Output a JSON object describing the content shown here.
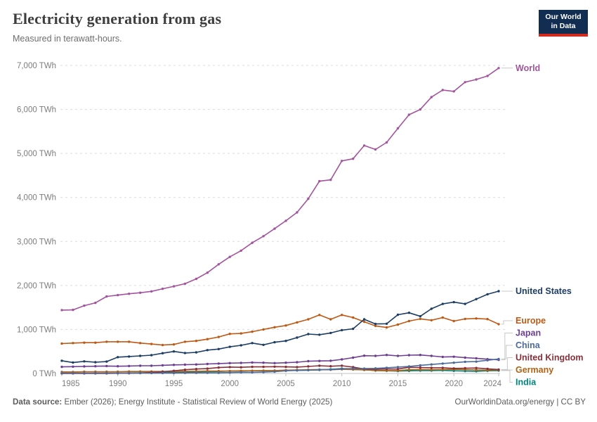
{
  "header": {
    "logo_line1": "Our World",
    "logo_line2": "in Data"
  },
  "footer": {
    "source_label": "Data source:",
    "source_text": "Ember (2026); Energy Institute - Statistical Review of World Energy (2025)",
    "right_text": "OurWorldinData.org/energy | CC BY"
  },
  "chart_data": {
    "type": "line",
    "title": "Electricity generation from gas",
    "subtitle": "Measured in terawatt-hours.",
    "unit": "TWh",
    "xlim": [
      1985,
      2024
    ],
    "ylim": [
      0,
      7000
    ],
    "grid": "horizontal-dashed",
    "legend_position": "right-of-line",
    "yticks": [
      0,
      1000,
      2000,
      3000,
      4000,
      5000,
      6000,
      7000
    ],
    "ytick_suffix": " TWh",
    "xticks": [
      1985,
      1990,
      1995,
      2000,
      2005,
      2010,
      2015,
      2020,
      2024
    ],
    "x": [
      1985,
      1986,
      1987,
      1988,
      1989,
      1990,
      1991,
      1992,
      1993,
      1994,
      1995,
      1996,
      1997,
      1998,
      1999,
      2000,
      2001,
      2002,
      2003,
      2004,
      2005,
      2006,
      2007,
      2008,
      2009,
      2010,
      2011,
      2012,
      2013,
      2014,
      2015,
      2016,
      2017,
      2018,
      2019,
      2020,
      2021,
      2022,
      2023,
      2024
    ],
    "series": [
      {
        "name": "World",
        "color": "#a2559c",
        "values": [
          1440,
          1445,
          1540,
          1605,
          1750,
          1780,
          1810,
          1835,
          1865,
          1925,
          1980,
          2040,
          2150,
          2290,
          2480,
          2650,
          2790,
          2970,
          3120,
          3290,
          3470,
          3660,
          3970,
          4370,
          4400,
          4830,
          4880,
          5180,
          5090,
          5250,
          5570,
          5880,
          6000,
          6280,
          6440,
          6410,
          6620,
          6680,
          6760,
          6940
        ]
      },
      {
        "name": "United States",
        "color": "#1d3d63",
        "values": [
          290,
          250,
          275,
          255,
          270,
          370,
          385,
          400,
          415,
          460,
          500,
          465,
          480,
          530,
          555,
          605,
          640,
          690,
          650,
          710,
          740,
          815,
          895,
          880,
          920,
          985,
          1015,
          1230,
          1125,
          1130,
          1335,
          1380,
          1300,
          1470,
          1580,
          1620,
          1580,
          1690,
          1800,
          1870
        ]
      },
      {
        "name": "Europe",
        "color": "#be5915",
        "values": [
          680,
          690,
          700,
          700,
          720,
          720,
          720,
          690,
          670,
          645,
          660,
          720,
          740,
          780,
          830,
          900,
          910,
          950,
          1000,
          1050,
          1090,
          1160,
          1230,
          1330,
          1230,
          1330,
          1270,
          1175,
          1080,
          1045,
          1110,
          1190,
          1240,
          1210,
          1270,
          1190,
          1240,
          1250,
          1235,
          1120
        ]
      },
      {
        "name": "Japan",
        "color": "#6d3e91",
        "values": [
          150,
          155,
          160,
          165,
          170,
          165,
          170,
          175,
          175,
          185,
          195,
          200,
          205,
          215,
          225,
          235,
          240,
          250,
          245,
          235,
          245,
          255,
          280,
          285,
          290,
          320,
          360,
          405,
          400,
          420,
          400,
          415,
          420,
          400,
          375,
          380,
          360,
          345,
          325,
          310
        ]
      },
      {
        "name": "China",
        "color": "#4c6a9c",
        "values": [
          10,
          10,
          10,
          10,
          10,
          10,
          10,
          10,
          10,
          10,
          10,
          12,
          15,
          15,
          15,
          20,
          25,
          25,
          30,
          40,
          60,
          70,
          75,
          85,
          90,
          105,
          110,
          110,
          115,
          130,
          145,
          160,
          185,
          205,
          225,
          245,
          265,
          270,
          300,
          330
        ]
      },
      {
        "name": "United Kingdom",
        "color": "#883039",
        "values": [
          2,
          2,
          2,
          2,
          2,
          5,
          5,
          10,
          25,
          40,
          60,
          85,
          100,
          110,
          135,
          145,
          140,
          150,
          150,
          155,
          150,
          145,
          160,
          175,
          165,
          175,
          145,
          100,
          95,
          100,
          100,
          140,
          135,
          130,
          130,
          115,
          120,
          125,
          105,
          90
        ]
      },
      {
        "name": "Germany",
        "color": "#b16214",
        "values": [
          35,
          35,
          40,
          40,
          40,
          40,
          45,
          45,
          45,
          45,
          45,
          50,
          50,
          55,
          55,
          55,
          60,
          60,
          65,
          65,
          75,
          80,
          85,
          90,
          85,
          95,
          90,
          80,
          70,
          65,
          65,
          85,
          90,
          85,
          90,
          95,
          90,
          80,
          75,
          80
        ]
      },
      {
        "name": "India",
        "color": "#00847e",
        "values": [
          3,
          4,
          5,
          7,
          9,
          10,
          12,
          15,
          18,
          20,
          25,
          30,
          35,
          40,
          45,
          55,
          55,
          60,
          60,
          65,
          70,
          70,
          75,
          80,
          95,
          110,
          105,
          90,
          65,
          60,
          55,
          60,
          65,
          65,
          70,
          60,
          55,
          50,
          60,
          65
        ]
      }
    ]
  }
}
